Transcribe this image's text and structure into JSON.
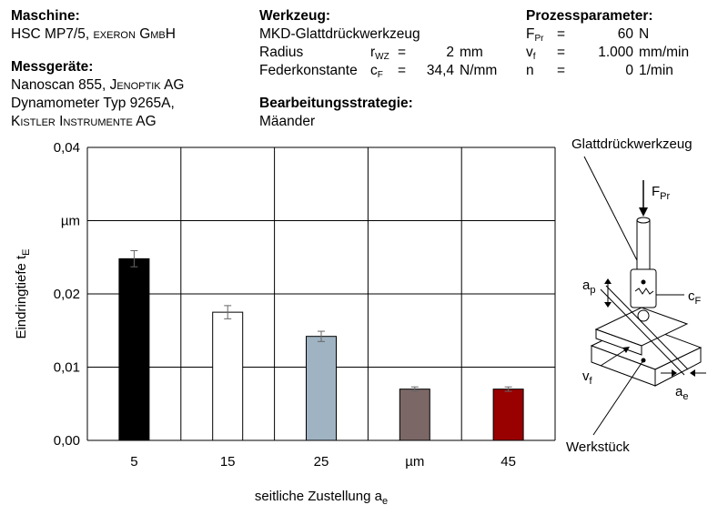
{
  "header": {
    "machine": {
      "title": "Maschine:",
      "line1_a": "HSC MP7/5, ",
      "line1_b": "exeron GmbH"
    },
    "instruments": {
      "title": "Messgeräte:",
      "line1_a": "Nanoscan 855, ",
      "line1_b": "Jenoptik AG",
      "line2": "Dynamometer Typ 9265A,",
      "line3": "Kistler Instrumente AG"
    },
    "tool": {
      "title": "Werkzeug:",
      "name": "MKD-Glattdrückwerkzeug",
      "radius_label": "Radius",
      "radius_sym": "r",
      "radius_sub": "WZ",
      "radius_eq": "=",
      "radius_value": "2",
      "radius_unit": "mm",
      "spring_label": "Federkonstante",
      "spring_sym": "c",
      "spring_sub": "F",
      "spring_eq": "=",
      "spring_value": "34,4",
      "spring_unit": "N/mm"
    },
    "strategy": {
      "title": "Bearbeitungsstrategie:",
      "value": "Mäander"
    },
    "process": {
      "title": "Prozessparameter:",
      "rows": [
        {
          "sym": "F",
          "sub": "Pr",
          "eq": "=",
          "value": "60",
          "unit": "N"
        },
        {
          "sym": "v",
          "sub": "f",
          "eq": "=",
          "value": "1.000",
          "unit": "mm/min"
        },
        {
          "sym": "n",
          "sub": "",
          "eq": "=",
          "value": "0",
          "unit": "1/min"
        }
      ]
    }
  },
  "chart_data": {
    "type": "bar",
    "categories": [
      "5",
      "15",
      "25",
      "µm",
      "45"
    ],
    "values": [
      0.0248,
      0.0175,
      0.0142,
      0.007,
      0.007
    ],
    "errors": [
      0.0011,
      0.0009,
      0.0007,
      0.0003,
      0.0003
    ],
    "bar_colors": [
      "#000000",
      "#ffffff",
      "#9fb3c2",
      "#7b6866",
      "#990000"
    ],
    "xlabel": "seitliche Zustellung a",
    "xlabel_sub": "e",
    "ylabel": "Eindringtiefe t",
    "ylabel_sub": "E",
    "ylim": [
      0,
      0.04
    ],
    "yticks": [
      {
        "value": 0.0,
        "label": "0,00"
      },
      {
        "value": 0.01,
        "label": "0,01"
      },
      {
        "value": 0.02,
        "label": "0,02"
      },
      {
        "value": 0.03,
        "label": "µm"
      },
      {
        "value": 0.04,
        "label": "0,04"
      }
    ],
    "grid": true
  },
  "diagram": {
    "tool_label": "Glattdrückwerkzeug",
    "force_label": "F",
    "force_sub": "Pr",
    "ap_label": "a",
    "ap_sub": "p",
    "cf_label": "c",
    "cf_sub": "F",
    "vf_label": "v",
    "vf_sub": "f",
    "ae_label": "a",
    "ae_sub": "e",
    "workpiece_label": "Werkstück"
  }
}
